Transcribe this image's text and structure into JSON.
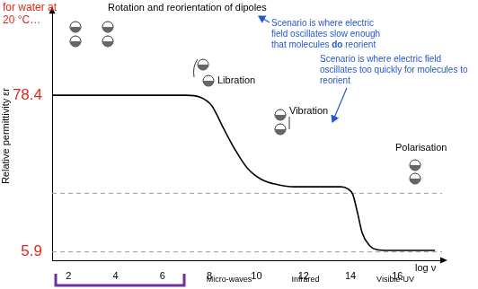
{
  "chart_data": {
    "type": "line",
    "title": "Rotation and reorientation of dipoles",
    "x_label": "log ν",
    "y_label": "Relative permittivity εr",
    "x": [
      1.3,
      7.0,
      7.6,
      8.1,
      8.6,
      9.1,
      9.6,
      10.2,
      10.9,
      11.6,
      13.6,
      13.9,
      14.1,
      14.3,
      14.5,
      14.8,
      15.1,
      15.6,
      17.6
    ],
    "values": [
      78.4,
      78.4,
      77.5,
      73.5,
      63,
      53,
      44.8,
      39.5,
      37,
      36,
      36,
      35,
      32.5,
      24,
      14.7,
      9,
      7,
      6.6,
      6.6
    ],
    "color": "#000000",
    "line_style": "solid",
    "reference_lines": [
      {
        "value": 33,
        "color": "#9e9e9e",
        "line_style": "dashed"
      },
      {
        "value": 5.9,
        "color": "#9e9e9e",
        "line_style": "dashed"
      }
    ],
    "xlim": [
      1.3,
      17.9
    ],
    "xticks": [
      2,
      4,
      6,
      8,
      10,
      12,
      14,
      16
    ],
    "ylim": [
      2,
      117
    ],
    "yticks": [
      5.9,
      78.4
    ],
    "grid": false,
    "annotations": {
      "note": "for water at 20 °C…",
      "mechanisms": [
        "Libration",
        "Vibration",
        "Polarisation"
      ],
      "bands": [
        "Micro-waves",
        "Infrared",
        "Visible-UV"
      ],
      "callouts": [
        [
          "Scenario is where electric field oscillates slow enough that molecules ",
          "do",
          " reorient"
        ],
        [
          "Scenario is where electric field oscillates too quickly for molecules to reorient"
        ]
      ]
    }
  }
}
